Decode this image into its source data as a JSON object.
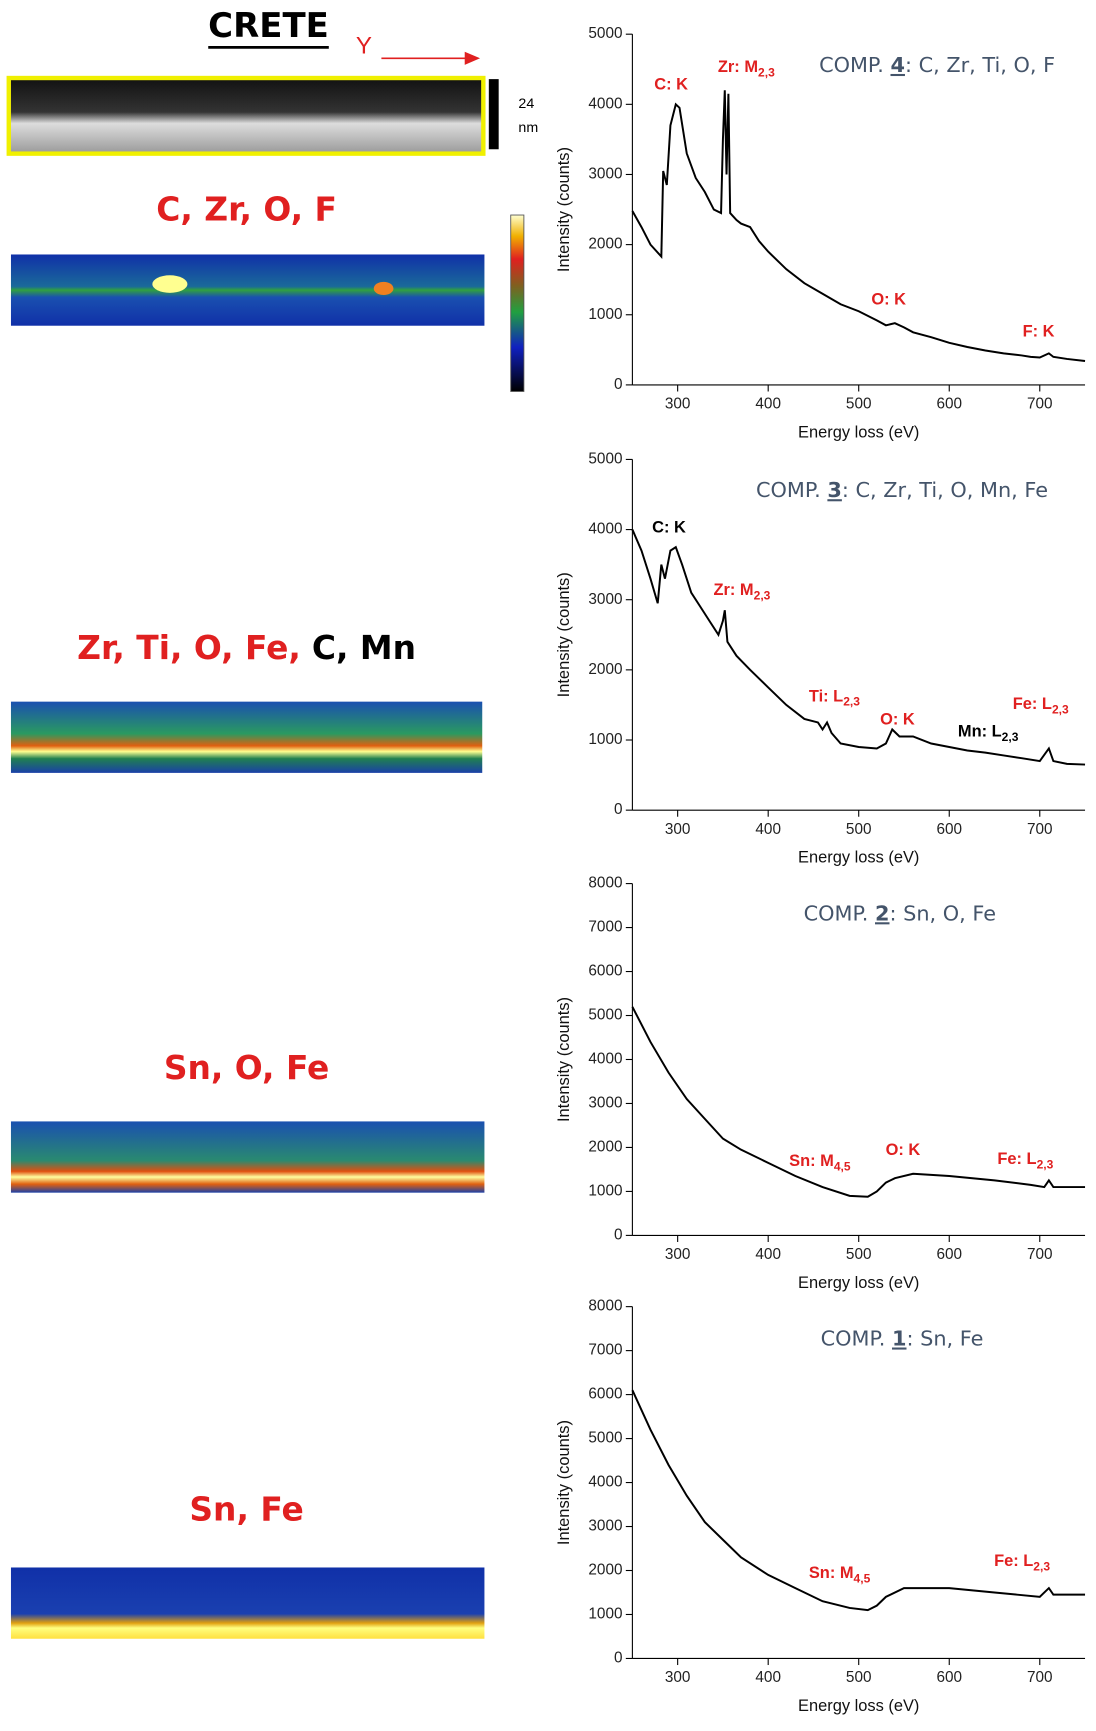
{
  "figure": {
    "title": "CRETE",
    "direction": "Y",
    "scale_bar": [
      "24",
      "nm"
    ],
    "maps": [
      {
        "parts": [
          {
            "text": "C, Zr, O, F",
            "color": "#e02020"
          }
        ]
      },
      {
        "parts": [
          {
            "text": "Zr, Ti, O, Fe,",
            "color": "#e02020"
          },
          {
            "text": "C, Mn",
            "color": "#000000"
          }
        ]
      },
      {
        "parts": [
          {
            "text": "Sn, O, Fe",
            "color": "#e02020"
          }
        ]
      },
      {
        "parts": [
          {
            "text": "Sn, Fe",
            "color": "#e02020"
          }
        ]
      }
    ]
  },
  "chart_data": [
    {
      "type": "line",
      "title": {
        "prefix": "COMP. ",
        "number": "4",
        "rest": ": C, Zr, Ti, O, F"
      },
      "x_label": "Energy loss (eV)",
      "y_label": "Intensity (counts)",
      "color": "#000000",
      "xlim": [
        250,
        750
      ],
      "xticks": [
        300,
        400,
        500,
        600,
        700
      ],
      "ylim": [
        0,
        5000
      ],
      "yticks": [
        0,
        1000,
        2000,
        3000,
        4000,
        5000
      ],
      "x": [
        250,
        260,
        270,
        282,
        284,
        288,
        292,
        298,
        302,
        310,
        320,
        330,
        340,
        348,
        350,
        352,
        354,
        356,
        358,
        365,
        370,
        380,
        390,
        400,
        420,
        440,
        460,
        480,
        500,
        520,
        530,
        540,
        550,
        560,
        580,
        600,
        620,
        640,
        660,
        680,
        690,
        700,
        710,
        715,
        730,
        750
      ],
      "values": [
        2480,
        2250,
        2000,
        1830,
        3050,
        2850,
        3700,
        4000,
        3950,
        3300,
        2950,
        2750,
        2500,
        2450,
        3500,
        4200,
        3000,
        4150,
        2450,
        2350,
        2300,
        2250,
        2050,
        1900,
        1650,
        1450,
        1300,
        1150,
        1050,
        920,
        850,
        880,
        820,
        750,
        680,
        600,
        540,
        490,
        450,
        420,
        400,
        390,
        450,
        400,
        370,
        340
      ],
      "annotations": [
        {
          "text": "C: K",
          "color": "#e02020"
        },
        {
          "text": "Zr: M",
          "sub": "2,3",
          "color": "#e02020"
        },
        {
          "text": "O: K",
          "color": "#e02020"
        },
        {
          "text": "F: K",
          "color": "#e02020"
        }
      ]
    },
    {
      "type": "line",
      "title": {
        "prefix": "COMP. ",
        "number": "3",
        "rest": ": C, Zr, Ti, O, Mn, Fe"
      },
      "x_label": "Energy loss (eV)",
      "y_label": "Intensity (counts)",
      "color": "#000000",
      "xlim": [
        250,
        750
      ],
      "xticks": [
        300,
        400,
        500,
        600,
        700
      ],
      "ylim": [
        0,
        5000
      ],
      "yticks": [
        0,
        1000,
        2000,
        3000,
        4000,
        5000
      ],
      "x": [
        250,
        260,
        270,
        278,
        282,
        286,
        292,
        298,
        305,
        315,
        325,
        335,
        345,
        350,
        352,
        355,
        365,
        380,
        400,
        420,
        440,
        455,
        460,
        465,
        470,
        480,
        500,
        520,
        530,
        537,
        545,
        560,
        580,
        600,
        620,
        640,
        660,
        680,
        700,
        710,
        715,
        730,
        750
      ],
      "values": [
        4000,
        3700,
        3300,
        2950,
        3500,
        3300,
        3700,
        3750,
        3500,
        3100,
        2900,
        2700,
        2500,
        2700,
        2850,
        2400,
        2200,
        2000,
        1750,
        1500,
        1300,
        1250,
        1150,
        1250,
        1100,
        950,
        900,
        880,
        950,
        1150,
        1050,
        1050,
        950,
        900,
        850,
        820,
        780,
        740,
        700,
        880,
        700,
        660,
        650
      ],
      "annotations": [
        {
          "text": "C: K",
          "color": "#000000"
        },
        {
          "text": "Zr: M",
          "sub": "2,3",
          "color": "#e02020"
        },
        {
          "text": "Ti: L",
          "sub": "2,3",
          "color": "#e02020"
        },
        {
          "text": "O: K",
          "color": "#e02020"
        },
        {
          "text": "Mn: L",
          "sub": "2,3",
          "color": "#000000"
        },
        {
          "text": "Fe: L",
          "sub": "2,3",
          "color": "#e02020"
        }
      ]
    },
    {
      "type": "line",
      "title": {
        "prefix": "COMP. ",
        "number": "2",
        "rest": ": Sn, O, Fe"
      },
      "x_label": "Energy loss (eV)",
      "y_label": "Intensity (counts)",
      "color": "#000000",
      "xlim": [
        250,
        750
      ],
      "xticks": [
        300,
        400,
        500,
        600,
        700
      ],
      "ylim": [
        0,
        8000
      ],
      "yticks": [
        0,
        1000,
        2000,
        3000,
        4000,
        5000,
        6000,
        7000,
        8000
      ],
      "x": [
        250,
        270,
        290,
        310,
        330,
        350,
        370,
        400,
        430,
        460,
        490,
        510,
        520,
        530,
        540,
        560,
        600,
        650,
        690,
        705,
        710,
        715,
        750
      ],
      "values": [
        5200,
        4400,
        3700,
        3100,
        2650,
        2200,
        1950,
        1650,
        1350,
        1100,
        900,
        880,
        1000,
        1200,
        1300,
        1400,
        1350,
        1250,
        1150,
        1100,
        1250,
        1100,
        1100
      ],
      "annotations": [
        {
          "text": "Sn: M",
          "sub": "4,5",
          "color": "#e02020"
        },
        {
          "text": "O: K",
          "color": "#e02020"
        },
        {
          "text": "Fe: L",
          "sub": "2,3",
          "color": "#e02020"
        }
      ]
    },
    {
      "type": "line",
      "title": {
        "prefix": "COMP. ",
        "number": "1",
        "rest": ": Sn, Fe"
      },
      "x_label": "Energy loss (eV)",
      "y_label": "Intensity (counts)",
      "color": "#000000",
      "xlim": [
        250,
        750
      ],
      "xticks": [
        300,
        400,
        500,
        600,
        700
      ],
      "ylim": [
        0,
        8000
      ],
      "yticks": [
        0,
        1000,
        2000,
        3000,
        4000,
        5000,
        6000,
        7000,
        8000
      ],
      "x": [
        250,
        270,
        290,
        310,
        330,
        350,
        370,
        400,
        430,
        460,
        490,
        510,
        520,
        530,
        550,
        600,
        650,
        700,
        710,
        715,
        750
      ],
      "values": [
        6100,
        5200,
        4400,
        3700,
        3100,
        2700,
        2300,
        1900,
        1600,
        1300,
        1150,
        1100,
        1200,
        1400,
        1600,
        1600,
        1500,
        1400,
        1600,
        1450,
        1450
      ],
      "annotations": [
        {
          "text": "Sn: M",
          "sub": "4,5",
          "color": "#e02020"
        },
        {
          "text": "Fe: L",
          "sub": "2,3",
          "color": "#e02020"
        }
      ]
    }
  ]
}
